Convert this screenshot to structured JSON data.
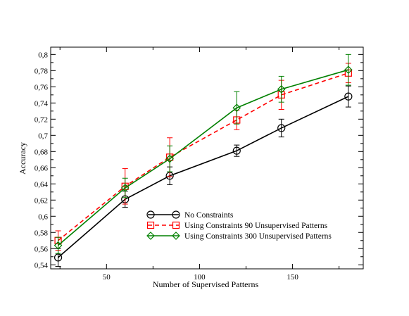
{
  "chart_data": {
    "type": "line",
    "title": "",
    "xlabel": "Number of Supervised Patterns",
    "ylabel": "Accuracy",
    "xlim": [
      20,
      188
    ],
    "ylim": [
      0.535,
      0.809
    ],
    "xticks": [
      50,
      100,
      150
    ],
    "xtick_labels": [
      "50",
      "100",
      "150"
    ],
    "yticks": [
      0.54,
      0.56,
      0.58,
      0.6,
      0.62,
      0.64,
      0.66,
      0.68,
      0.7,
      0.72,
      0.74,
      0.76,
      0.78,
      0.8
    ],
    "ytick_labels": [
      "0,54",
      "0,56",
      "0,58",
      "0,6",
      "0,62",
      "0,64",
      "0,66",
      "0,68",
      "0,7",
      "0,72",
      "0,74",
      "0,76",
      "0,78",
      "0,8"
    ],
    "grid": false,
    "legend_position": "lower-right",
    "x": [
      24,
      60,
      84,
      120,
      144,
      180
    ],
    "series": [
      {
        "name": "No Constraints",
        "color": "#000000",
        "marker": "circle",
        "dash": "solid",
        "values": [
          0.549,
          0.621,
          0.65,
          0.681,
          0.709,
          0.748
        ],
        "errors": [
          0.011,
          0.01,
          0.011,
          0.007,
          0.011,
          0.013
        ]
      },
      {
        "name": "Using Constraints 90 Unsupervised Patterns",
        "color": "#ff0000",
        "marker": "square",
        "dash": "dashed",
        "values": [
          0.57,
          0.637,
          0.673,
          0.719,
          0.75,
          0.777
        ],
        "errors": [
          0.012,
          0.022,
          0.024,
          0.012,
          0.018,
          0.012
        ]
      },
      {
        "name": "Using Constraints 300 Unsupervised Patterns",
        "color": "#008000",
        "marker": "diamond",
        "dash": "solid",
        "values": [
          0.564,
          0.635,
          0.671,
          0.734,
          0.757,
          0.781
        ],
        "errors": [
          0.01,
          0.012,
          0.016,
          0.02,
          0.016,
          0.019
        ]
      }
    ]
  }
}
